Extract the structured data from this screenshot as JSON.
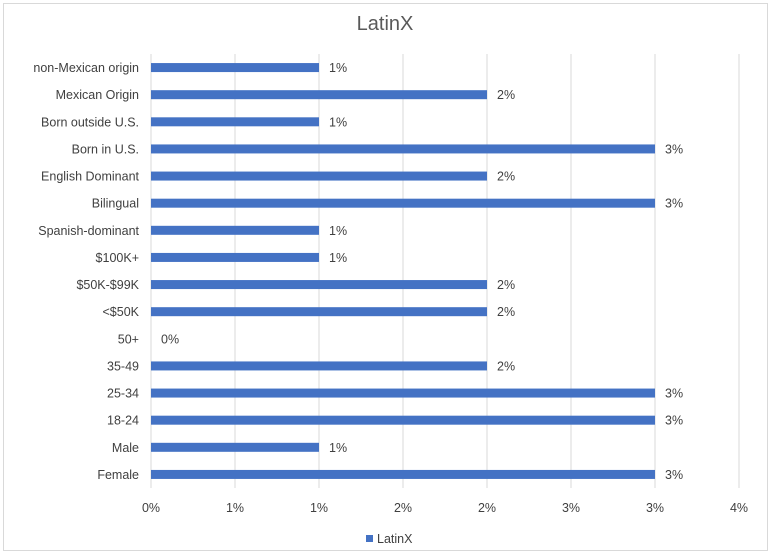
{
  "chart_data": {
    "type": "bar",
    "orientation": "horizontal",
    "title": "LatinX",
    "xlabel": "",
    "ylabel": "",
    "categories": [
      "non-Mexican origin",
      "Mexican Origin",
      "Born outside U.S.",
      "Born in U.S.",
      "English Dominant",
      "Bilingual",
      "Spanish-dominant",
      "$100K+",
      "$50K-$99K",
      "<$50K",
      "50+",
      "35-49",
      "25-34",
      "18-24",
      "Male",
      "Female"
    ],
    "series": [
      {
        "name": "LatinX",
        "values": [
          0.01,
          0.02,
          0.01,
          0.03,
          0.02,
          0.03,
          0.01,
          0.01,
          0.02,
          0.02,
          0.0,
          0.02,
          0.03,
          0.03,
          0.01,
          0.03
        ],
        "data_labels": [
          "1%",
          "2%",
          "1%",
          "3%",
          "2%",
          "3%",
          "1%",
          "1%",
          "2%",
          "2%",
          "0%",
          "2%",
          "3%",
          "3%",
          "1%",
          "3%"
        ],
        "color": "#4472c4"
      }
    ],
    "xlim": [
      0,
      0.035
    ],
    "x_ticks": [
      0,
      0.005,
      0.01,
      0.015,
      0.02,
      0.025,
      0.03,
      0.035
    ],
    "x_tick_labels": [
      "0%",
      "1%",
      "1%",
      "2%",
      "2%",
      "3%",
      "3%",
      "4%"
    ],
    "grid": "vertical",
    "legend": {
      "position": "bottom",
      "entries": [
        "LatinX"
      ]
    },
    "colors": {
      "bar": "#4472c4",
      "grid": "#d9d9d9",
      "text": "#404040",
      "title": "#595959"
    }
  }
}
